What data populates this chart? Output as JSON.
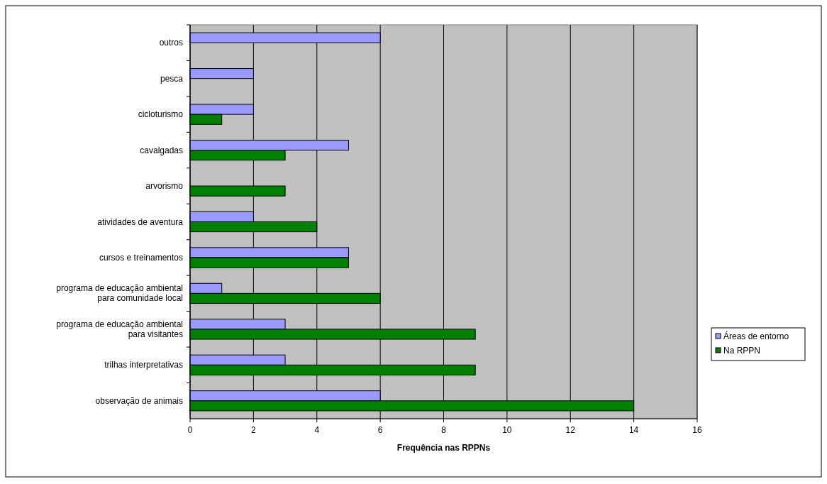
{
  "chart_data": {
    "type": "bar",
    "orientation": "horizontal",
    "xlabel": "Frequência nas RPPNs",
    "categories": [
      "outros",
      "pesca",
      "cicloturismo",
      "cavalgadas",
      "arvorismo",
      "atividades de aventura",
      "cursos e treinamentos",
      "programa de educação ambiental\npara comunidade local",
      "programa de educação ambiental\npara visitantes",
      "trilhas interpretativas",
      "observação de animais"
    ],
    "series": [
      {
        "name": "Áreas de entorno",
        "color": "#9999ff",
        "values": [
          6,
          2,
          2,
          5,
          null,
          2,
          5,
          1,
          3,
          3,
          6
        ]
      },
      {
        "name": "Na RPPN",
        "color": "#008000",
        "values": [
          null,
          null,
          1,
          3,
          3,
          4,
          5,
          6,
          9,
          9,
          14
        ]
      }
    ],
    "xlim": [
      0,
      16
    ],
    "xticks": [
      0,
      2,
      4,
      6,
      8,
      10,
      12,
      14,
      16
    ],
    "grid": "x",
    "legend": "right"
  }
}
